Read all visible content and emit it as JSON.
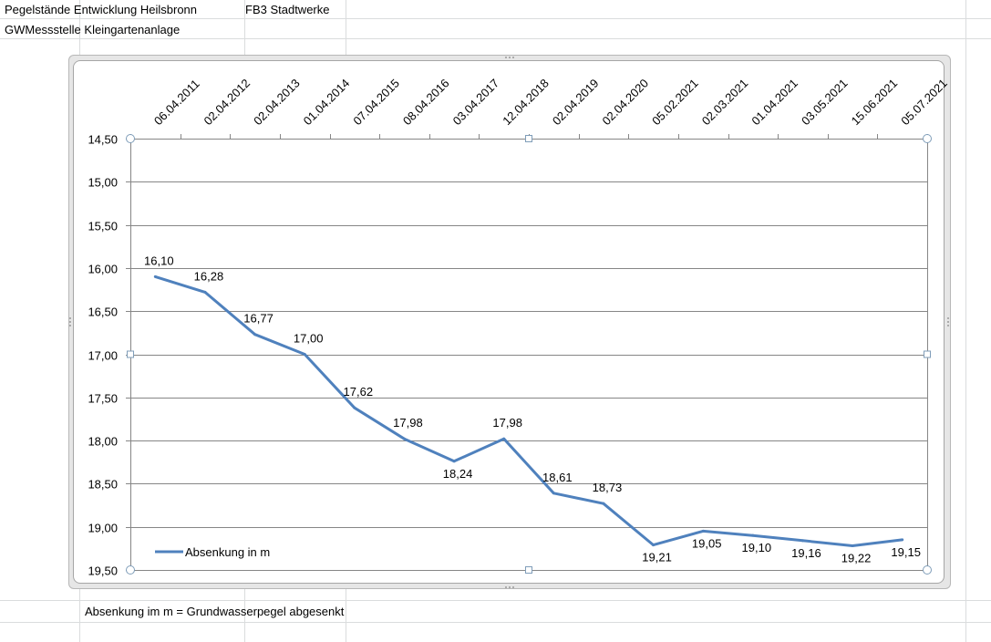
{
  "sheet": {
    "a1": "Pegelstände Entwicklung Heilsbronn",
    "b1": "FB3 Stadtwerke",
    "a2": "GWMessstelle Kleingartenanlage",
    "footnote": "Absenkung im m = Grundwasserpegel abgesenkt"
  },
  "chart_data": {
    "type": "line",
    "categories": [
      "06.04.2011",
      "02.04.2012",
      "02.04.2013",
      "01.04.2014",
      "07.04.2015",
      "08.04.2016",
      "03.04.2017",
      "12.04.2018",
      "02.04.2019",
      "02.04.2020",
      "05.02.2021",
      "02.03.2021",
      "01.04.2021",
      "03.05.2021",
      "15.06.2021",
      "05.07.2021"
    ],
    "series": [
      {
        "name": "Absenkung in m",
        "color": "#4f81bd",
        "values": [
          16.1,
          16.28,
          16.77,
          17.0,
          17.62,
          17.98,
          18.24,
          17.98,
          18.61,
          18.73,
          19.21,
          19.05,
          19.1,
          19.16,
          19.22,
          19.15
        ],
        "labels": [
          "16,10",
          "16,28",
          "16,77",
          "17,00",
          "17,62",
          "17,98",
          "18,24",
          "17,98",
          "18,61",
          "18,73",
          "19,21",
          "19,05",
          "19,10",
          "19,16",
          "19,22",
          "19,15"
        ]
      }
    ],
    "y_axis": {
      "reversed": true,
      "ylim": [
        14.5,
        19.5
      ],
      "ticks": [
        "14,50",
        "15,00",
        "15,50",
        "16,00",
        "16,50",
        "17,00",
        "17,50",
        "18,00",
        "18,50",
        "19,00",
        "19,50"
      ]
    },
    "x_axis_position": "top",
    "grid": true,
    "legend_position": "bottom-left"
  }
}
